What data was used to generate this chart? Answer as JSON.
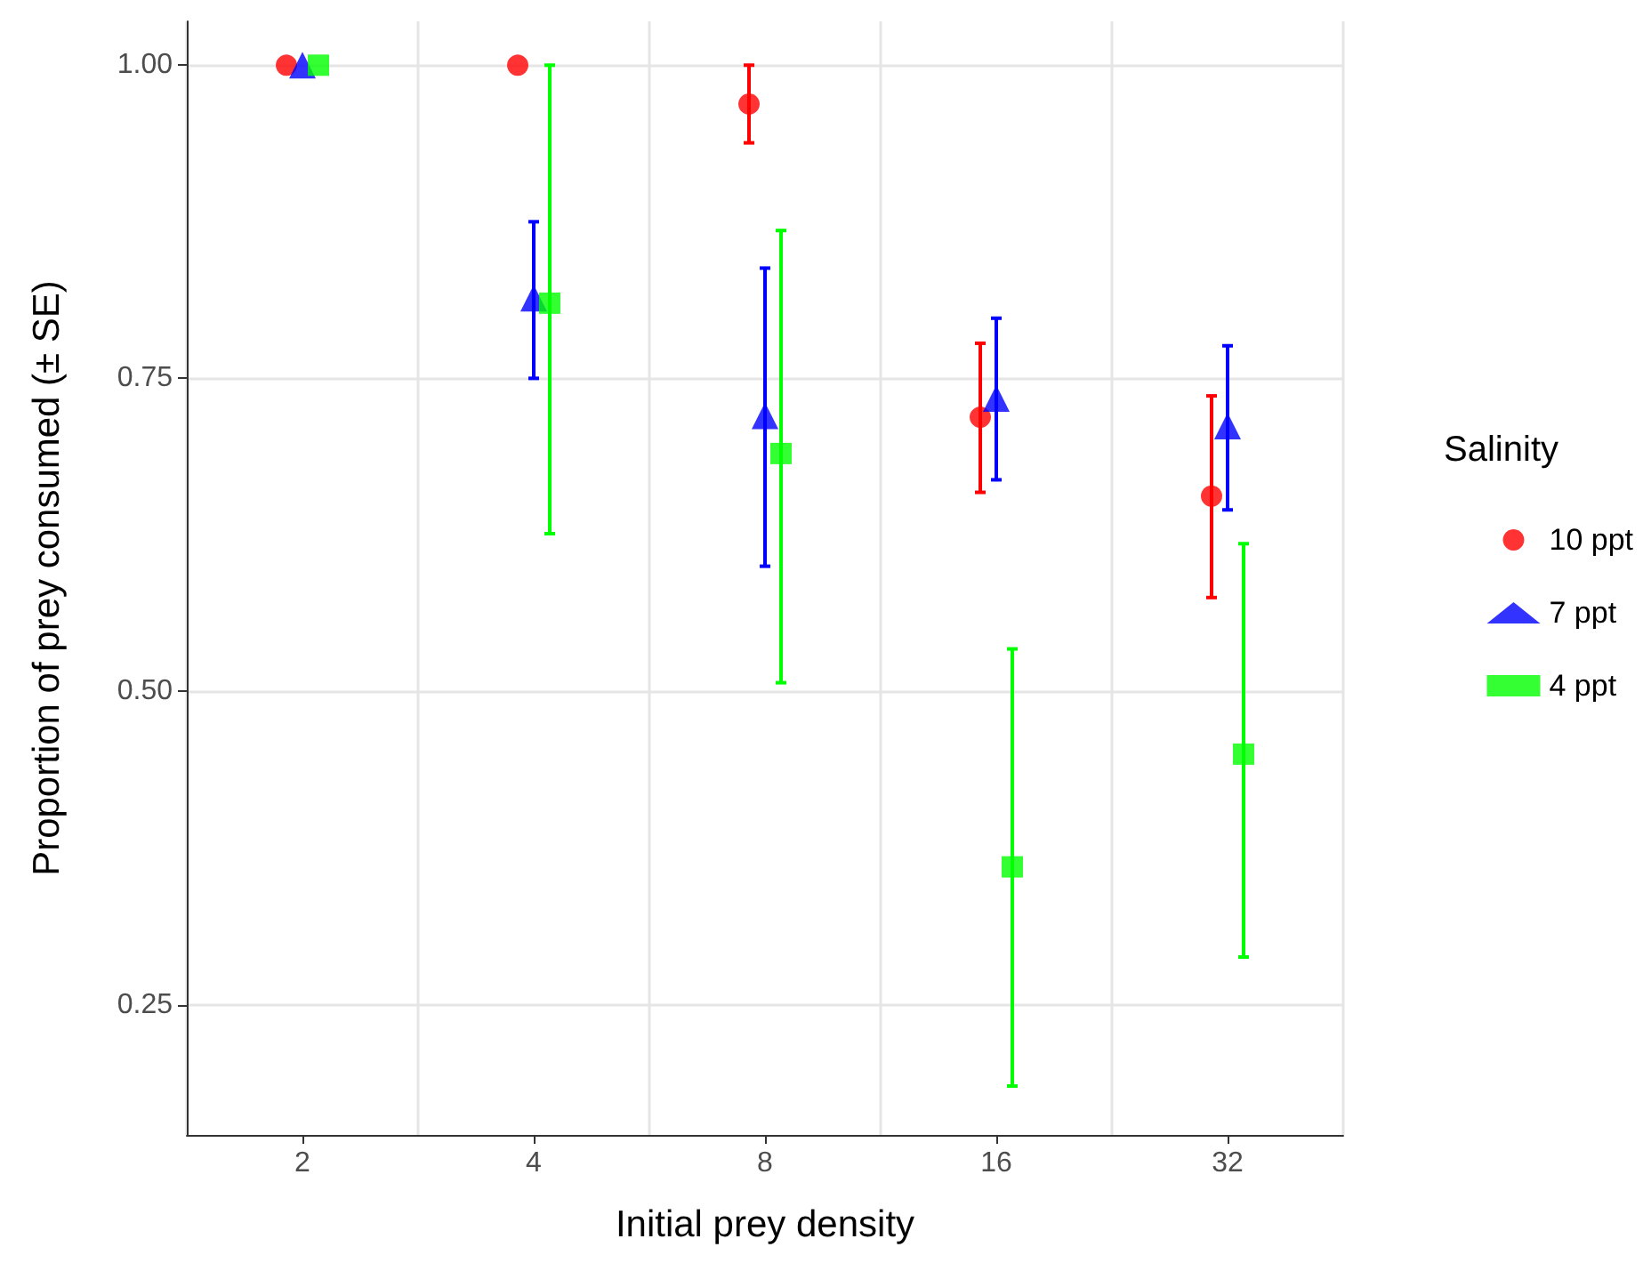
{
  "chart_data": {
    "type": "scatter",
    "xlabel": "Initial prey density",
    "ylabel": "Proportion of prey consumed (± SE)",
    "legend_title": "Salinity",
    "legend": "right",
    "grid": true,
    "categories": [
      "2",
      "4",
      "8",
      "16",
      "32"
    ],
    "ylim": [
      0.146,
      1.035
    ],
    "yticks": [
      {
        "value": 0.25,
        "label": "0.25"
      },
      {
        "value": 0.5,
        "label": "0.50"
      },
      {
        "value": 0.75,
        "label": "0.75"
      },
      {
        "value": 1,
        "label": "1.00"
      }
    ],
    "series": [
      {
        "name": "10 ppt",
        "color": "#ff0000",
        "marker": "circle",
        "values": [
          1.0,
          1.0,
          0.969,
          0.719,
          0.656
        ],
        "errors": [
          null,
          null,
          [
            0.938,
            1.0
          ],
          [
            0.659,
            0.778
          ],
          [
            0.575,
            0.736
          ]
        ]
      },
      {
        "name": "7 ppt",
        "color": "#0000ff",
        "marker": "triangle",
        "values": [
          1.0,
          0.814,
          0.72,
          0.734,
          0.712
        ],
        "errors": [
          null,
          [
            0.75,
            0.875
          ],
          [
            0.6,
            0.838
          ],
          [
            0.669,
            0.798
          ],
          [
            0.645,
            0.776
          ]
        ]
      },
      {
        "name": "4 ppt",
        "color": "#00ff00",
        "marker": "square",
        "values": [
          1.0,
          0.81,
          0.69,
          0.36,
          0.45
        ],
        "errors": [
          null,
          [
            0.626,
            1.0
          ],
          [
            0.507,
            0.868
          ],
          [
            0.185,
            0.534
          ],
          [
            0.288,
            0.618
          ]
        ]
      }
    ]
  }
}
